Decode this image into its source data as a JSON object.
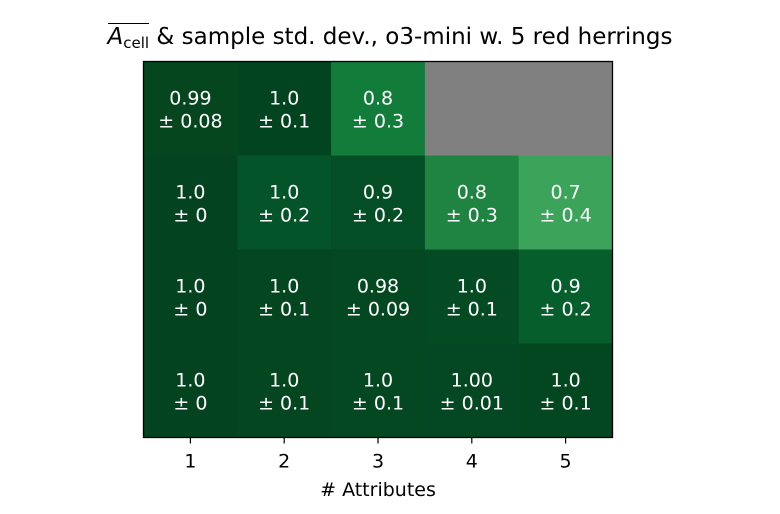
{
  "title": {
    "symbol": "A",
    "subscript": "cell",
    "rest": " & sample std. dev., o3-mini w. 5 red herrings"
  },
  "chart_data": {
    "type": "heatmap",
    "title": "A_cell & sample std. dev., o3-mini w. 5 red herrings",
    "xlabel": "# Attributes",
    "ylabel": "",
    "x_categories": [
      "1",
      "2",
      "3",
      "4",
      "5"
    ],
    "rows": [
      {
        "values": [
          0.99,
          1.0,
          0.8,
          null,
          null
        ],
        "labels": [
          [
            "0.99",
            "± 0.08"
          ],
          [
            "1.0",
            "± 0.1"
          ],
          [
            "0.8",
            "± 0.3"
          ],
          null,
          null
        ]
      },
      {
        "values": [
          1.0,
          1.0,
          0.9,
          0.8,
          0.7
        ],
        "labels": [
          [
            "1.0",
            "± 0"
          ],
          [
            "1.0",
            "± 0.2"
          ],
          [
            "0.9",
            "± 0.2"
          ],
          [
            "0.8",
            "± 0.3"
          ],
          [
            "0.7",
            "± 0.4"
          ]
        ]
      },
      {
        "values": [
          1.0,
          1.0,
          0.98,
          1.0,
          0.9
        ],
        "labels": [
          [
            "1.0",
            "± 0"
          ],
          [
            "1.0",
            "± 0.1"
          ],
          [
            "0.98",
            "± 0.09"
          ],
          [
            "1.0",
            "± 0.1"
          ],
          [
            "0.9",
            "± 0.2"
          ]
        ]
      },
      {
        "values": [
          1.0,
          1.0,
          1.0,
          1.0,
          1.0
        ],
        "labels": [
          [
            "1.0",
            "± 0"
          ],
          [
            "1.0",
            "± 0.1"
          ],
          [
            "1.0",
            "± 0.1"
          ],
          [
            "1.00",
            "± 0.01"
          ],
          [
            "1.0",
            "± 0.1"
          ]
        ]
      }
    ],
    "cell_colors": [
      [
        "#05461f",
        "#034420",
        "#127c3b",
        null,
        null
      ],
      [
        "#034320",
        "#04542a",
        "#044e25",
        "#1f8441",
        "#3ba35a"
      ],
      [
        "#034320",
        "#04461f",
        "#034821",
        "#044b23",
        "#055e2b"
      ],
      [
        "#034320",
        "#04461f",
        "#034821",
        "#034822",
        "#034721"
      ]
    ],
    "missing_color": "#808080",
    "text_color": "#ffffff",
    "grid": false,
    "legend": "none"
  }
}
